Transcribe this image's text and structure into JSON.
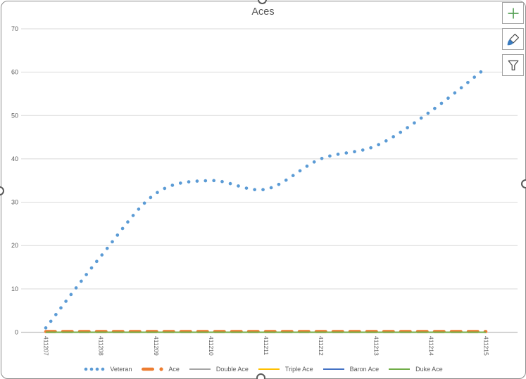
{
  "chart_title": "Aces",
  "side_toolbar": {
    "buttons": [
      {
        "id": "chart-elements",
        "icon": "plus-icon"
      },
      {
        "id": "chart-styles",
        "icon": "brush-icon"
      },
      {
        "id": "chart-filters",
        "icon": "funnel-icon"
      }
    ]
  },
  "colors": {
    "title_text": "#595959",
    "axis_text": "#595959",
    "legend_text": "#595959",
    "gridline": "#d9d9d9",
    "axis_line": "#bfbfbf",
    "frame_border": "#8a8a8a",
    "handle": "#595959",
    "button_border": "#a6a6a6",
    "plus_icon": "#55a055",
    "brush_tip": "#3a7bbf",
    "icon_outline": "#4a4a4a"
  },
  "chart_data": {
    "type": "line",
    "title": "Aces",
    "xlabel": "",
    "ylabel": "",
    "ylim": [
      0,
      70
    ],
    "ytick_step": 10,
    "grid": true,
    "legend_position": "bottom",
    "xtick_rotation": 90,
    "categories": [
      "411207",
      "411208",
      "411209",
      "411210",
      "411211",
      "411212",
      "411213",
      "411214",
      "411215"
    ],
    "series": [
      {
        "name": "Veteran",
        "values": [
          1,
          17.5,
          32,
          35,
          33,
          40,
          43,
          51,
          61
        ],
        "color": "#5b9bd5",
        "style": "round-dot",
        "smooth": true
      },
      {
        "name": "Ace",
        "values": [
          0,
          0,
          0,
          0,
          0,
          0,
          0,
          0,
          0
        ],
        "color": "#ed7d31",
        "style": "dashed",
        "marker": "circle"
      },
      {
        "name": "Double Ace",
        "values": [
          0,
          0,
          0,
          0,
          0,
          0,
          0,
          0,
          0
        ],
        "color": "#a5a5a5",
        "style": "solid"
      },
      {
        "name": "Triple Ace",
        "values": [
          0,
          0,
          0,
          0,
          0,
          0,
          0,
          0,
          0
        ],
        "color": "#ffc000",
        "style": "solid"
      },
      {
        "name": "Baron Ace",
        "values": [
          0,
          0,
          0,
          0,
          0,
          0,
          0,
          0,
          0
        ],
        "color": "#4472c4",
        "style": "solid"
      },
      {
        "name": "Duke Ace",
        "values": [
          0,
          0,
          0,
          0,
          0,
          0,
          0,
          0,
          0
        ],
        "color": "#70ad47",
        "style": "solid"
      }
    ]
  }
}
